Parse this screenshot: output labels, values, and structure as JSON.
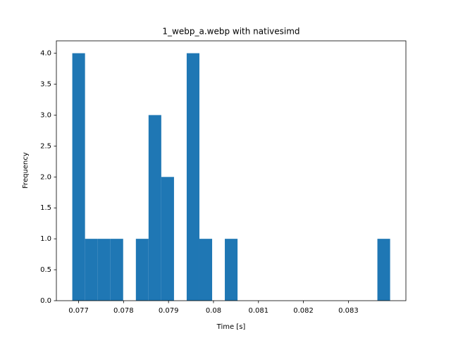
{
  "chart_data": {
    "type": "histogram",
    "title": "1_webp_a.webp with nativesimd",
    "x_label": "Time [s]",
    "y_label": "Frequency",
    "color": "#1f77b4",
    "grid": false,
    "bins": [
      0.07686,
      0.077143,
      0.077425,
      0.077708,
      0.077991,
      0.078274,
      0.078556,
      0.078839,
      0.079122,
      0.079404,
      0.079687,
      0.07997,
      0.080252,
      0.080535,
      0.080818,
      0.081101,
      0.081383,
      0.081666,
      0.081949,
      0.082231,
      0.082514,
      0.082797,
      0.083079,
      0.083362,
      0.083645,
      0.083928
    ],
    "values": [
      4,
      1,
      1,
      1,
      0,
      1,
      3,
      2,
      0,
      4,
      1,
      0,
      1,
      0,
      0,
      0,
      0,
      0,
      0,
      0,
      0,
      0,
      0,
      0,
      1
    ],
    "xlim": [
      0.076506,
      0.084279
    ],
    "xticks": [
      0.077,
      0.078,
      0.079,
      0.08,
      0.081,
      0.082,
      0.083
    ],
    "ylim": [
      0,
      4.2
    ],
    "yticks": [
      {
        "value": 0,
        "label": "0.0"
      },
      {
        "value": 0.5,
        "label": "0.5"
      },
      {
        "value": 1,
        "label": "1.0"
      },
      {
        "value": 1.5,
        "label": "1.5"
      },
      {
        "value": 2,
        "label": "2.0"
      },
      {
        "value": 2.5,
        "label": "2.5"
      },
      {
        "value": 3,
        "label": "3.0"
      },
      {
        "value": 3.5,
        "label": "3.5"
      },
      {
        "value": 4,
        "label": "4.0"
      }
    ]
  }
}
